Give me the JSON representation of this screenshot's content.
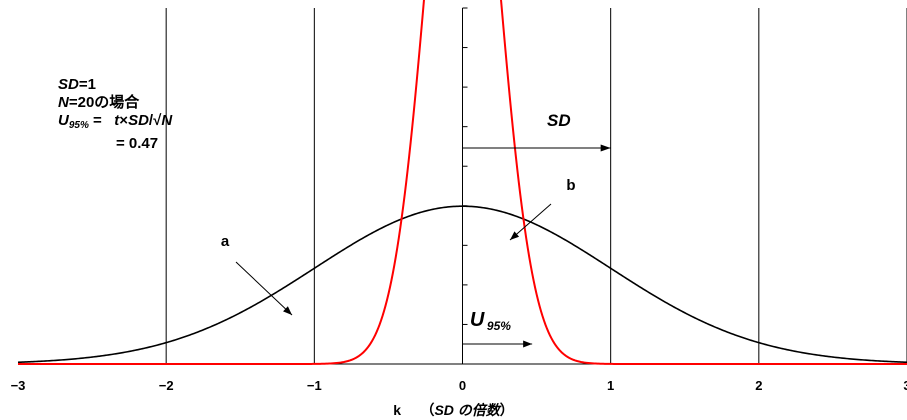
{
  "chart_data": {
    "type": "line",
    "xlabel": "k",
    "xlabel_note": "SD の倍数",
    "xlim": [
      -3,
      3
    ],
    "ylim": [
      0,
      0.9
    ],
    "x_ticks": [
      -3,
      -2,
      -1,
      0,
      1,
      2,
      3
    ],
    "x_tick_labels": [
      "−3",
      "−2",
      "−1",
      "0",
      "1",
      "2",
      "3"
    ],
    "grid": "vertical",
    "series": [
      {
        "name": "a",
        "color": "#000000",
        "distribution": "normal",
        "mean": 0,
        "sd": 1
      },
      {
        "name": "b",
        "color": "#ff0000",
        "distribution": "normal",
        "mean": 0,
        "sd": 0.235
      }
    ],
    "annotations": {
      "label_a": "a",
      "label_b": "b",
      "sd_label": "SD",
      "sd_arrow": {
        "from": 0,
        "to": 1
      },
      "u95_label": "U",
      "u95_sub": "95%",
      "u95_arrow": {
        "from": 0,
        "to": 0.47
      }
    },
    "info": {
      "sd_prefix": "SD",
      "sd_value": "=1",
      "n_prefix": "N",
      "n_value": "=20の場合",
      "u_sym": "U",
      "u_sub": "95%",
      "formula_eq": " =  ",
      "formula_t": "t",
      "formula_times": "×",
      "formula_sd": "SD",
      "formula_slash": "/√",
      "formula_n": "N",
      "result": "=  0.47"
    }
  }
}
